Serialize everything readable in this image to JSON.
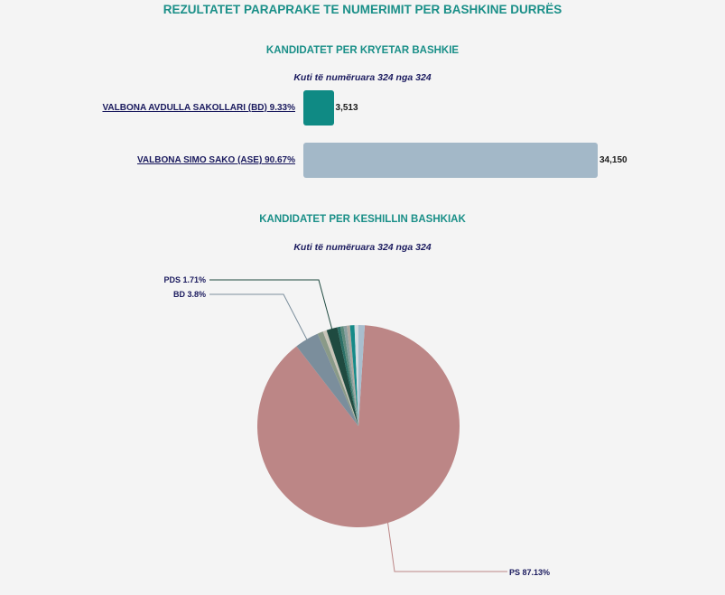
{
  "title": "REZULTATET PARAPRAKE TE NUMERIMIT PER BASHKINE DURRËS",
  "chart_data": [
    {
      "type": "bar",
      "orientation": "horizontal",
      "title": "KANDIDATET PER KRYETAR BASHKIE",
      "subtitle": "Kuti të numëruara 324 nga 324",
      "categories": [
        "VALBONA AVDULLA SAKOLLARI (BD) 9.33%",
        "VALBONA SIMO SAKO (ASE) 90.67%"
      ],
      "values": [
        3513,
        34150
      ],
      "value_labels": [
        "3,513",
        "34,150"
      ],
      "colors": [
        "#0f8a84",
        "#a3b8c8"
      ]
    },
    {
      "type": "pie",
      "title": "KANDIDATET PER KESHILLIN BASHKIAK",
      "subtitle": "Kuti të numëruara 324 nga 324",
      "labels": [
        "PS 87.13%",
        "BD 3.8%",
        "PDS 1.71%"
      ],
      "slices": [
        {
          "value": 87.13,
          "color": "#bc8686",
          "label": "PS 87.13%"
        },
        {
          "value": 3.8,
          "color": "#7b8e9c",
          "label": "BD 3.8%"
        },
        {
          "value": 0.9,
          "color": "#8a9a88"
        },
        {
          "value": 0.6,
          "color": "#c8c4b8"
        },
        {
          "value": 1.71,
          "color": "#1f4a40",
          "label": "PDS 1.71%"
        },
        {
          "value": 0.5,
          "color": "#2b6f66"
        },
        {
          "value": 0.5,
          "color": "#5c8a7c"
        },
        {
          "value": 0.5,
          "color": "#8aa0a0"
        },
        {
          "value": 0.5,
          "color": "#b0a8a0"
        },
        {
          "value": 0.7,
          "color": "#158a88"
        },
        {
          "value": 0.6,
          "color": "#d4dce0"
        },
        {
          "value": 1.0,
          "color": "#a8bece"
        }
      ]
    }
  ]
}
